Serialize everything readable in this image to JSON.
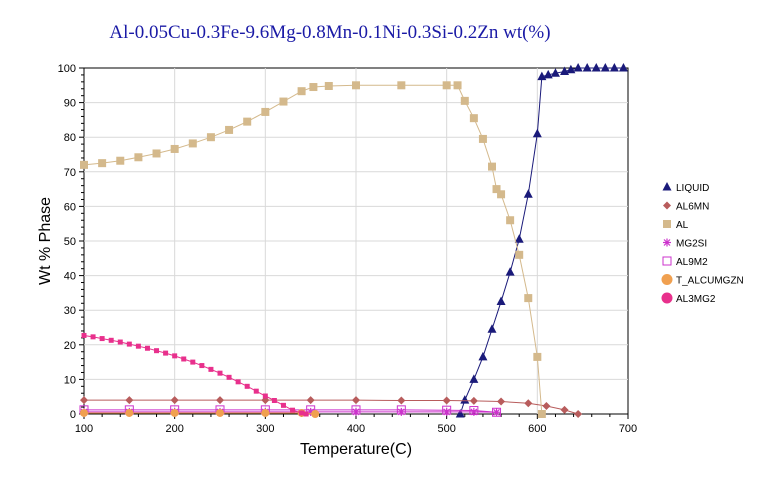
{
  "chart_data": {
    "type": "line",
    "title": "Al-0.05Cu-0.3Fe-9.6Mg-0.8Mn-0.1Ni-0.3Si-0.2Zn wt(%)",
    "xlabel": "Temperature(C)",
    "ylabel": "Wt % Phase",
    "xlim": [
      100,
      700
    ],
    "ylim": [
      0,
      100
    ],
    "xticks": [
      100,
      200,
      300,
      400,
      500,
      600,
      700
    ],
    "yticks": [
      0,
      10,
      20,
      30,
      40,
      50,
      60,
      70,
      80,
      90,
      100
    ],
    "grid": true,
    "legend_position": "right",
    "series": [
      {
        "name": "LIQUID",
        "color": "#1a1a7a",
        "marker": "triangle",
        "points": [
          [
            515,
            0
          ],
          [
            520,
            4
          ],
          [
            530,
            10
          ],
          [
            540,
            16.5
          ],
          [
            550,
            24.5
          ],
          [
            560,
            32.5
          ],
          [
            570,
            41
          ],
          [
            580,
            50.5
          ],
          [
            590,
            63.5
          ],
          [
            600,
            81
          ],
          [
            605,
            97.5
          ],
          [
            612,
            98
          ],
          [
            620,
            98.5
          ],
          [
            630,
            99
          ],
          [
            637,
            99.5
          ],
          [
            645,
            100
          ],
          [
            655,
            100
          ],
          [
            665,
            100
          ],
          [
            675,
            100
          ],
          [
            685,
            100
          ],
          [
            695,
            100
          ]
        ]
      },
      {
        "name": "AL6MN",
        "color": "#b85c5c",
        "marker": "diamond",
        "points": [
          [
            100,
            4
          ],
          [
            150,
            4
          ],
          [
            200,
            4
          ],
          [
            250,
            4
          ],
          [
            300,
            4
          ],
          [
            350,
            4
          ],
          [
            400,
            4
          ],
          [
            450,
            3.9
          ],
          [
            500,
            3.9
          ],
          [
            530,
            3.8
          ],
          [
            560,
            3.6
          ],
          [
            590,
            3.1
          ],
          [
            610,
            2.3
          ],
          [
            630,
            1.2
          ],
          [
            645,
            0
          ]
        ]
      },
      {
        "name": "AL",
        "color": "#d4b98c",
        "marker": "square",
        "points": [
          [
            100,
            72
          ],
          [
            120,
            72.5
          ],
          [
            140,
            73.2
          ],
          [
            160,
            74.2
          ],
          [
            180,
            75.3
          ],
          [
            200,
            76.6
          ],
          [
            220,
            78.2
          ],
          [
            240,
            80
          ],
          [
            260,
            82.1
          ],
          [
            280,
            84.5
          ],
          [
            300,
            87.3
          ],
          [
            320,
            90.3
          ],
          [
            340,
            93.3
          ],
          [
            353,
            94.5
          ],
          [
            370,
            94.8
          ],
          [
            400,
            95
          ],
          [
            450,
            95
          ],
          [
            500,
            95
          ],
          [
            512,
            95
          ],
          [
            520,
            90.5
          ],
          [
            530,
            85.5
          ],
          [
            540,
            79.5
          ],
          [
            550,
            71.5
          ],
          [
            555,
            65
          ],
          [
            560,
            63.5
          ],
          [
            570,
            56
          ],
          [
            580,
            46
          ],
          [
            590,
            33.5
          ],
          [
            600,
            16.5
          ],
          [
            605,
            0
          ]
        ]
      },
      {
        "name": "MG2SI",
        "color": "#cc33cc",
        "marker": "asterisk",
        "points": [
          [
            100,
            0.6
          ],
          [
            150,
            0.6
          ],
          [
            200,
            0.6
          ],
          [
            250,
            0.6
          ],
          [
            300,
            0.6
          ],
          [
            350,
            0.6
          ],
          [
            400,
            0.6
          ],
          [
            450,
            0.6
          ],
          [
            500,
            0.6
          ],
          [
            530,
            0.6
          ],
          [
            555,
            0.5
          ]
        ]
      },
      {
        "name": "AL9M2",
        "color": "#cc33cc",
        "marker": "open-square",
        "points": [
          [
            100,
            1.2
          ],
          [
            150,
            1.2
          ],
          [
            200,
            1.2
          ],
          [
            250,
            1.2
          ],
          [
            300,
            1.2
          ],
          [
            350,
            1.2
          ],
          [
            400,
            1.2
          ],
          [
            450,
            1.2
          ],
          [
            500,
            1.1
          ],
          [
            530,
            1.0
          ],
          [
            555,
            0.5
          ]
        ]
      },
      {
        "name": "T_ALCUMGZN",
        "color": "#f0a050",
        "marker": "circle",
        "points": [
          [
            100,
            0.3
          ],
          [
            150,
            0.3
          ],
          [
            200,
            0.3
          ],
          [
            250,
            0.3
          ],
          [
            300,
            0.3
          ],
          [
            340,
            0.3
          ],
          [
            355,
            0
          ]
        ]
      },
      {
        "name": "AL3MG2",
        "color": "#e8308c",
        "marker": "small-square",
        "points": [
          [
            100,
            22.7
          ],
          [
            110,
            22.3
          ],
          [
            120,
            21.8
          ],
          [
            130,
            21.3
          ],
          [
            140,
            20.8
          ],
          [
            150,
            20.2
          ],
          [
            160,
            19.6
          ],
          [
            170,
            19
          ],
          [
            180,
            18.3
          ],
          [
            190,
            17.6
          ],
          [
            200,
            16.8
          ],
          [
            210,
            15.9
          ],
          [
            220,
            15
          ],
          [
            230,
            14
          ],
          [
            240,
            12.9
          ],
          [
            250,
            11.8
          ],
          [
            260,
            10.6
          ],
          [
            270,
            9.3
          ],
          [
            280,
            8
          ],
          [
            290,
            6.6
          ],
          [
            300,
            5.2
          ],
          [
            310,
            3.9
          ],
          [
            320,
            2.5
          ],
          [
            330,
            1.1
          ],
          [
            340,
            0.3
          ],
          [
            345,
            0
          ]
        ]
      }
    ]
  }
}
